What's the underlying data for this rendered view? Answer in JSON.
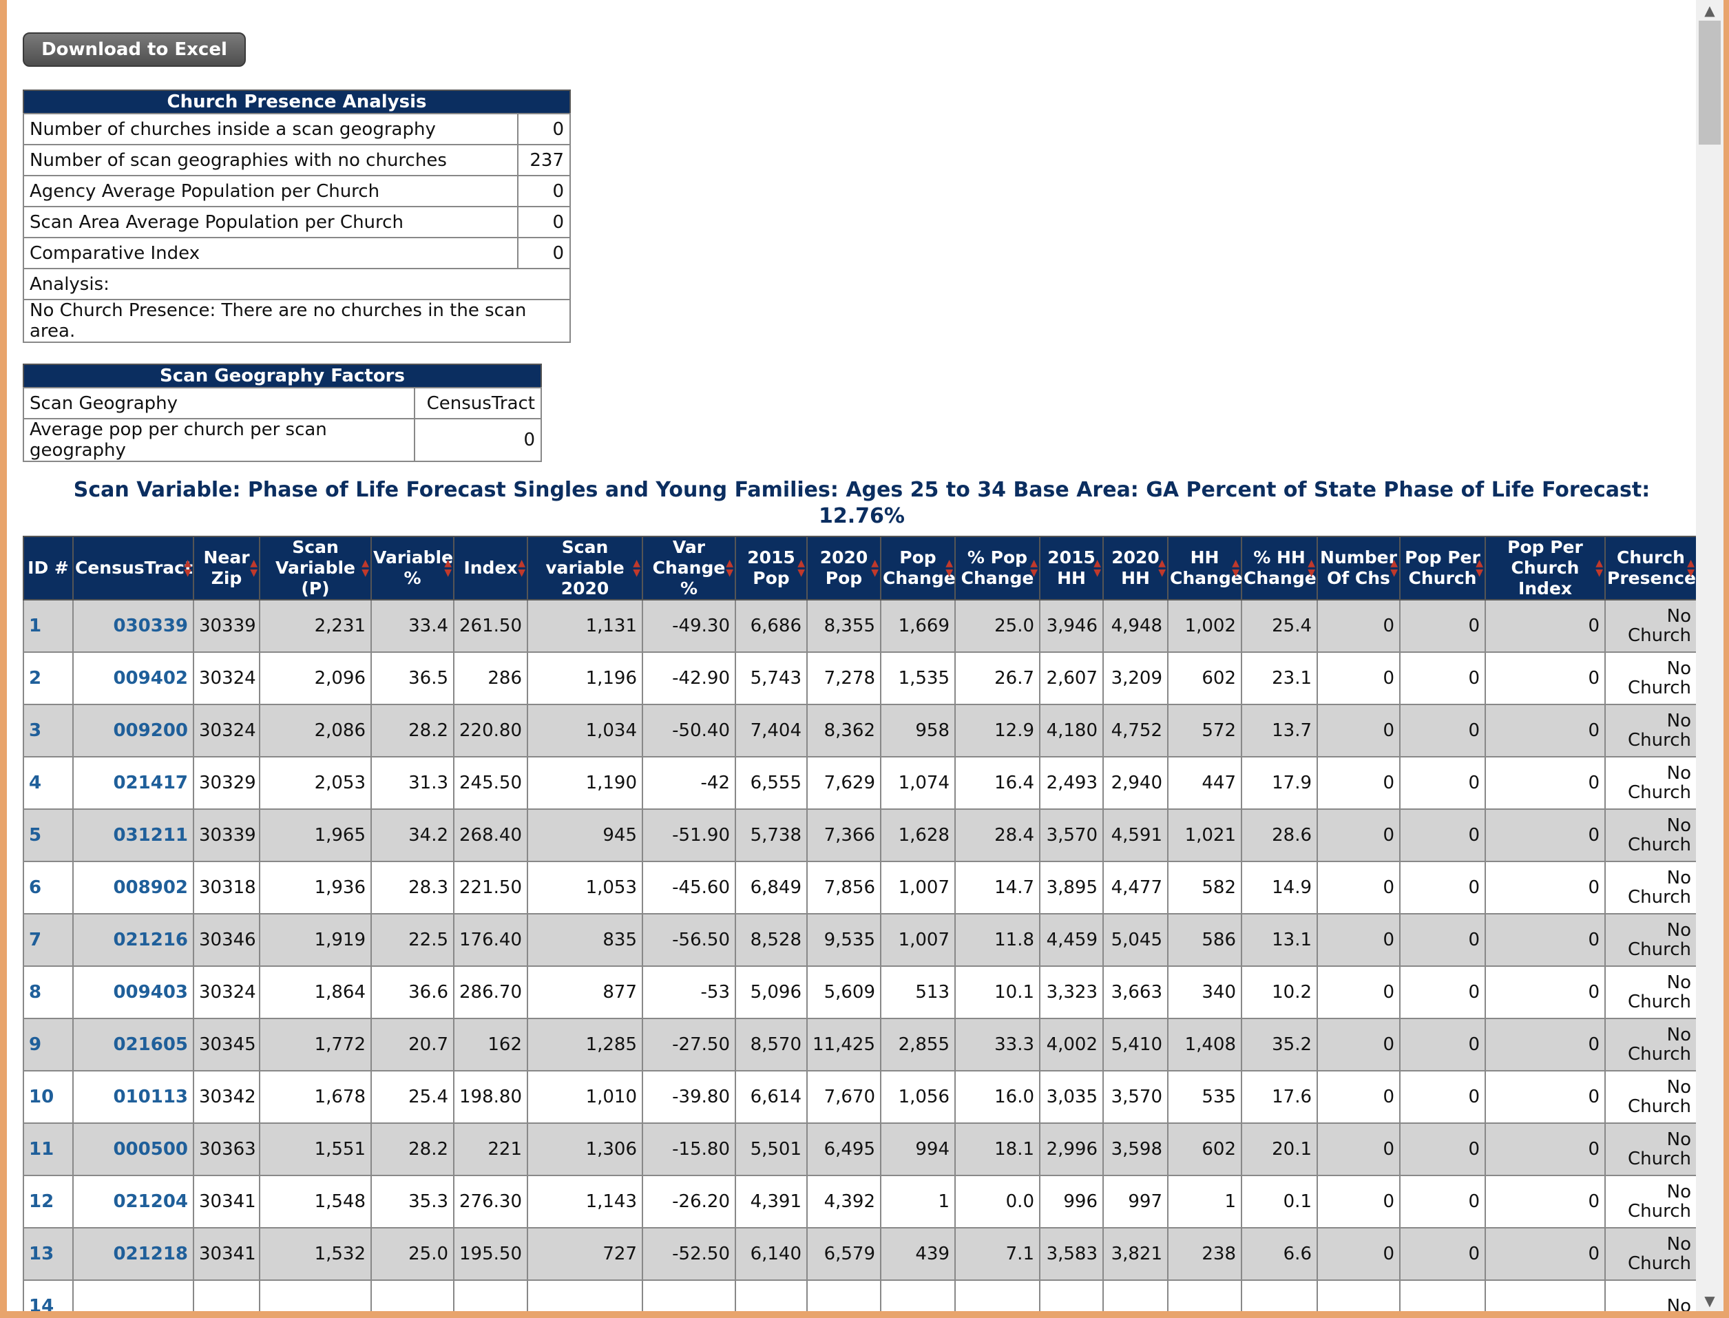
{
  "excel_button_label": "Download to Excel",
  "church_analysis": {
    "title": "Church Presence Analysis",
    "rows": [
      {
        "label": "Number of churches inside a scan geography",
        "value": "0"
      },
      {
        "label": "Number of scan geographies with no churches",
        "value": "237"
      },
      {
        "label": "Agency Average Population per Church",
        "value": "0"
      },
      {
        "label": "Scan Area Average Population per Church",
        "value": "0"
      },
      {
        "label": "Comparative Index",
        "value": "0"
      }
    ],
    "analysis_label": "Analysis:",
    "analysis_text": "No Church Presence: There are no churches in the scan area."
  },
  "scan_factors": {
    "title": "Scan Geography Factors",
    "rows": [
      {
        "label": "Scan Geography",
        "value": "CensusTract"
      },
      {
        "label": "Average pop per church per scan geography",
        "value": "0"
      }
    ]
  },
  "scan_title_line1": "Scan Variable: Phase of Life Forecast Singles and Young Families: Ages 25 to 34 Base Area: GA Percent of State Phase of Life Forecast:",
  "scan_title_line2": "12.76%",
  "table": {
    "headers": [
      "ID #",
      "CensusTract",
      "Near Zip",
      "Scan Variable (P)",
      "Variable %",
      "Index",
      "Scan variable 2020",
      "Var Change %",
      "2015 Pop",
      "2020 Pop",
      "Pop Change",
      "% Pop Change",
      "2015 HH",
      "2020 HH",
      "HH Change",
      "% HH Change",
      "Number Of Chs",
      "Pop Per Church",
      "Pop Per Church Index",
      "Church Presence"
    ],
    "rows": [
      [
        "1",
        "030339",
        "30339",
        "2,231",
        "33.4",
        "261.50",
        "1,131",
        "-49.30",
        "6,686",
        "8,355",
        "1,669",
        "25.0",
        "3,946",
        "4,948",
        "1,002",
        "25.4",
        "0",
        "0",
        "0",
        "No Church"
      ],
      [
        "2",
        "009402",
        "30324",
        "2,096",
        "36.5",
        "286",
        "1,196",
        "-42.90",
        "5,743",
        "7,278",
        "1,535",
        "26.7",
        "2,607",
        "3,209",
        "602",
        "23.1",
        "0",
        "0",
        "0",
        "No Church"
      ],
      [
        "3",
        "009200",
        "30324",
        "2,086",
        "28.2",
        "220.80",
        "1,034",
        "-50.40",
        "7,404",
        "8,362",
        "958",
        "12.9",
        "4,180",
        "4,752",
        "572",
        "13.7",
        "0",
        "0",
        "0",
        "No Church"
      ],
      [
        "4",
        "021417",
        "30329",
        "2,053",
        "31.3",
        "245.50",
        "1,190",
        "-42",
        "6,555",
        "7,629",
        "1,074",
        "16.4",
        "2,493",
        "2,940",
        "447",
        "17.9",
        "0",
        "0",
        "0",
        "No Church"
      ],
      [
        "5",
        "031211",
        "30339",
        "1,965",
        "34.2",
        "268.40",
        "945",
        "-51.90",
        "5,738",
        "7,366",
        "1,628",
        "28.4",
        "3,570",
        "4,591",
        "1,021",
        "28.6",
        "0",
        "0",
        "0",
        "No Church"
      ],
      [
        "6",
        "008902",
        "30318",
        "1,936",
        "28.3",
        "221.50",
        "1,053",
        "-45.60",
        "6,849",
        "7,856",
        "1,007",
        "14.7",
        "3,895",
        "4,477",
        "582",
        "14.9",
        "0",
        "0",
        "0",
        "No Church"
      ],
      [
        "7",
        "021216",
        "30346",
        "1,919",
        "22.5",
        "176.40",
        "835",
        "-56.50",
        "8,528",
        "9,535",
        "1,007",
        "11.8",
        "4,459",
        "5,045",
        "586",
        "13.1",
        "0",
        "0",
        "0",
        "No Church"
      ],
      [
        "8",
        "009403",
        "30324",
        "1,864",
        "36.6",
        "286.70",
        "877",
        "-53",
        "5,096",
        "5,609",
        "513",
        "10.1",
        "3,323",
        "3,663",
        "340",
        "10.2",
        "0",
        "0",
        "0",
        "No Church"
      ],
      [
        "9",
        "021605",
        "30345",
        "1,772",
        "20.7",
        "162",
        "1,285",
        "-27.50",
        "8,570",
        "11,425",
        "2,855",
        "33.3",
        "4,002",
        "5,410",
        "1,408",
        "35.2",
        "0",
        "0",
        "0",
        "No Church"
      ],
      [
        "10",
        "010113",
        "30342",
        "1,678",
        "25.4",
        "198.80",
        "1,010",
        "-39.80",
        "6,614",
        "7,670",
        "1,056",
        "16.0",
        "3,035",
        "3,570",
        "535",
        "17.6",
        "0",
        "0",
        "0",
        "No Church"
      ],
      [
        "11",
        "000500",
        "30363",
        "1,551",
        "28.2",
        "221",
        "1,306",
        "-15.80",
        "5,501",
        "6,495",
        "994",
        "18.1",
        "2,996",
        "3,598",
        "602",
        "20.1",
        "0",
        "0",
        "0",
        "No Church"
      ],
      [
        "12",
        "021204",
        "30341",
        "1,548",
        "35.3",
        "276.30",
        "1,143",
        "-26.20",
        "4,391",
        "4,392",
        "1",
        "0.0",
        "996",
        "997",
        "1",
        "0.1",
        "0",
        "0",
        "0",
        "No Church"
      ],
      [
        "13",
        "021218",
        "30341",
        "1,532",
        "25.0",
        "195.50",
        "727",
        "-52.50",
        "6,140",
        "6,579",
        "439",
        "7.1",
        "3,583",
        "3,821",
        "238",
        "6.6",
        "0",
        "0",
        "0",
        "No Church"
      ],
      [
        "14",
        "",
        "",
        "",
        "",
        "",
        "",
        "",
        "",
        "",
        "",
        "",
        "",
        "",
        "",
        "",
        "",
        "",
        "",
        "No"
      ]
    ]
  },
  "icons": {
    "sort": "sort-arrows-icon",
    "scroll_up": "scroll-up-arrow-icon",
    "scroll_down": "scroll-down-arrow-icon"
  }
}
